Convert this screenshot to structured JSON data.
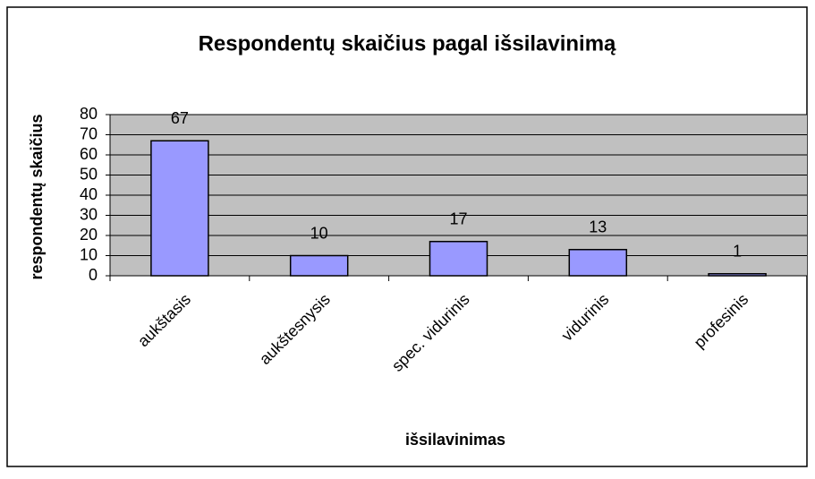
{
  "chart_data": {
    "type": "bar",
    "title": "Respondentų skaičius pagal išsilavinimą",
    "x_label": "išsilavinimas",
    "y_label": "respondentų skaičius",
    "categories": [
      "aukštasis",
      "aukštesnysis",
      "spec. vidurinis",
      "vidurinis",
      "profesinis"
    ],
    "values": [
      67,
      10,
      17,
      13,
      1
    ],
    "color": "#9999ff",
    "plot_background": "#c0c0c0",
    "ylim": [
      0,
      80
    ],
    "yticks": [
      0,
      10,
      20,
      30,
      40,
      50,
      60,
      70,
      80
    ],
    "grid": true
  }
}
